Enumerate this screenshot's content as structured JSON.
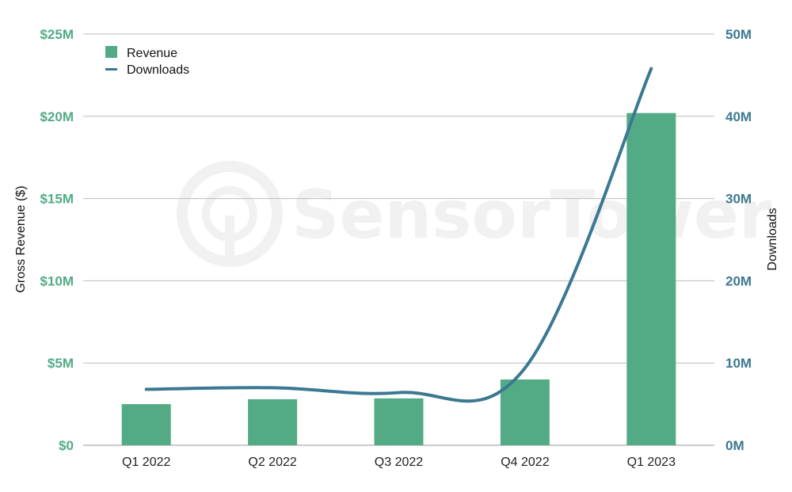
{
  "chart_data": {
    "type": "bar",
    "categories": [
      "Q1 2022",
      "Q2 2022",
      "Q3 2022",
      "Q4 2022",
      "Q1 2023"
    ],
    "series": [
      {
        "name": "Revenue",
        "type": "bar",
        "axis": "left",
        "values": [
          2.5,
          2.8,
          2.85,
          4.0,
          20.2
        ],
        "color": "#52ab85"
      },
      {
        "name": "Downloads",
        "type": "line",
        "axis": "right",
        "values": [
          6.8,
          7.0,
          6.4,
          9.4,
          45.8
        ],
        "color": "#3b7891"
      }
    ],
    "ylabel": "Gross Revenue ($)",
    "y2label": "Downloads",
    "ylim": [
      0,
      25
    ],
    "y2lim": [
      0,
      50
    ],
    "y_ticks": [
      "$0",
      "$5M",
      "$10M",
      "$15M",
      "$20M",
      "$25M"
    ],
    "y2_ticks": [
      "0M",
      "10M",
      "20M",
      "30M",
      "40M",
      "50M"
    ],
    "y_tick_color": "#52ab85",
    "y2_tick_color": "#3b7891",
    "grid": true,
    "legend": "top-left",
    "watermark": "SensorTower"
  }
}
